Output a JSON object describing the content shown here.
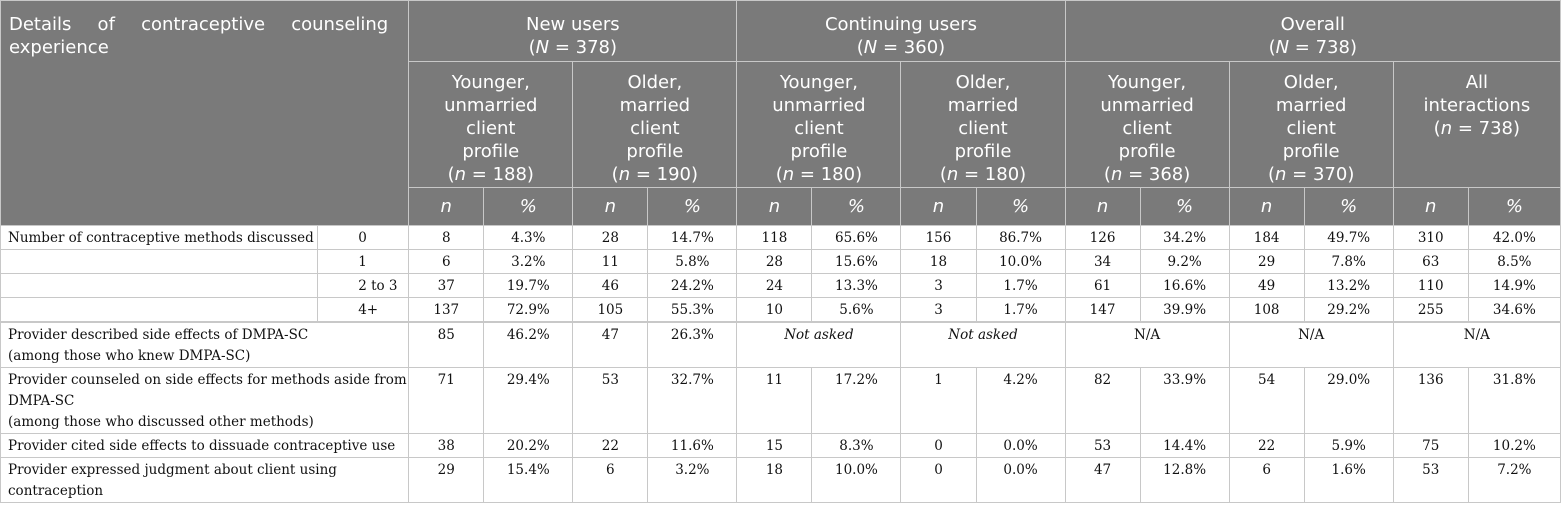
{
  "header": {
    "corner_label": "Details of contraceptive counseling experience",
    "groups": [
      {
        "title": "New users",
        "n_prefix": "(",
        "n_sym": "N",
        "n_suffix": " = 378)"
      },
      {
        "title": "Continuing users",
        "n_prefix": "(",
        "n_sym": "N",
        "n_suffix": " = 360)"
      },
      {
        "title": "Overall",
        "n_prefix": "(",
        "n_sym": "N",
        "n_suffix": " = 738)"
      }
    ],
    "subgroups": [
      {
        "lines": [
          "Younger,",
          "unmarried",
          "client",
          "profile"
        ],
        "n_prefix": "(",
        "n_sym": "n",
        "n_suffix": " = 188)"
      },
      {
        "lines": [
          "Older,",
          "married",
          "client",
          "profile"
        ],
        "n_prefix": "(",
        "n_sym": "n",
        "n_suffix": " = 190)"
      },
      {
        "lines": [
          "Younger,",
          "unmarried",
          "client",
          "profile"
        ],
        "n_prefix": "(",
        "n_sym": "n",
        "n_suffix": " = 180)"
      },
      {
        "lines": [
          "Older,",
          "married",
          "client",
          "profile"
        ],
        "n_prefix": "(",
        "n_sym": "n",
        "n_suffix": " = 180)"
      },
      {
        "lines": [
          "Younger,",
          "unmarried",
          "client",
          "profile"
        ],
        "n_prefix": "(",
        "n_sym": "n",
        "n_suffix": " = 368)"
      },
      {
        "lines": [
          "Older,",
          "married",
          "client",
          "profile"
        ],
        "n_prefix": "(",
        "n_sym": "n",
        "n_suffix": " = 370)"
      },
      {
        "lines": [
          "All",
          "interactions"
        ],
        "n_prefix": "(",
        "n_sym": "n",
        "n_suffix": " = 738)"
      }
    ],
    "n_label": "n",
    "pct_label": "%"
  },
  "rows": {
    "methods": {
      "label": "Number of contraceptive methods discussed",
      "items": [
        {
          "sub": "0",
          "cells": [
            "8",
            "4.3%",
            "28",
            "14.7%",
            "118",
            "65.6%",
            "156",
            "86.7%",
            "126",
            "34.2%",
            "184",
            "49.7%",
            "310",
            "42.0%"
          ]
        },
        {
          "sub": "1",
          "cells": [
            "6",
            "3.2%",
            "11",
            "5.8%",
            "28",
            "15.6%",
            "18",
            "10.0%",
            "34",
            "9.2%",
            "29",
            "7.8%",
            "63",
            "8.5%"
          ]
        },
        {
          "sub": "2 to 3",
          "cells": [
            "37",
            "19.7%",
            "46",
            "24.2%",
            "24",
            "13.3%",
            "3",
            "1.7%",
            "61",
            "16.6%",
            "49",
            "13.2%",
            "110",
            "14.9%"
          ]
        },
        {
          "sub": "4+",
          "cells": [
            "137",
            "72.9%",
            "105",
            "55.3%",
            "10",
            "5.6%",
            "3",
            "1.7%",
            "147",
            "39.9%",
            "108",
            "29.2%",
            "255",
            "34.6%"
          ]
        }
      ]
    },
    "side_effects_dmpa": {
      "label_lines": [
        "Provider described side effects of DMPA-SC",
        "(among those who knew DMPA-SC)"
      ],
      "cells": [
        "85",
        "46.2%",
        "47",
        "26.3%"
      ],
      "not_asked_1": "Not asked",
      "not_asked_2": "Not asked",
      "na_1": "N/A",
      "na_2": "N/A",
      "na_3": "N/A"
    },
    "side_effects_other": {
      "label_lines": [
        "Provider counseled on side effects for methods aside from",
        "DMPA-SC",
        "(among those who discussed other methods)"
      ],
      "cells": [
        "71",
        "29.4%",
        "53",
        "32.7%",
        "11",
        "17.2%",
        "1",
        "4.2%",
        "82",
        "33.9%",
        "54",
        "29.0%",
        "136",
        "31.8%"
      ]
    },
    "dissuade": {
      "label": "Provider cited side effects to dissuade contraceptive use",
      "cells": [
        "38",
        "20.2%",
        "22",
        "11.6%",
        "15",
        "8.3%",
        "0",
        "0.0%",
        "53",
        "14.4%",
        "22",
        "5.9%",
        "75",
        "10.2%"
      ]
    },
    "judgment": {
      "label_lines": [
        "Provider expressed judgment about client using",
        "contraception"
      ],
      "cells": [
        "29",
        "15.4%",
        "6",
        "3.2%",
        "18",
        "10.0%",
        "0",
        "0.0%",
        "47",
        "12.8%",
        "6",
        "1.6%",
        "53",
        "7.2%"
      ]
    }
  },
  "colors": {
    "header_bg": "#7a7a7a",
    "header_text": "#ffffff",
    "grid": "#c8c8c8"
  }
}
